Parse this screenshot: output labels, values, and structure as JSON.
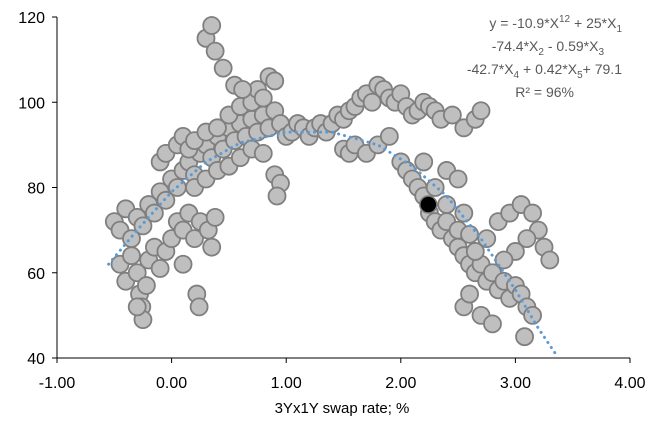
{
  "chart_data": {
    "type": "scatter",
    "title": "",
    "xlabel": "3Yx1Y swap rate; %",
    "ylabel": "",
    "xlim": [
      -1,
      4
    ],
    "ylim": [
      40,
      120
    ],
    "x_ticks": [
      "-1.00",
      "0.00",
      "1.00",
      "2.00",
      "3.00",
      "4.00"
    ],
    "y_ticks": [
      "40",
      "60",
      "80",
      "100",
      "120"
    ],
    "grid": false,
    "legend": "none",
    "marker_fill": "#bfbfbf",
    "marker_edge": "#7f7f7f",
    "trend_color": "#5b9bd5",
    "highlight_color": "#000000",
    "equation": {
      "line1_html": "y = -10.9*X<tspan dy='-5' font-size='10'>1</tspan><tspan dy='10' font-size='10'>2</tspan><tspan dy='-5'> + 25*X</tspan><tspan dy='5' font-size='10'>1</tspan>",
      "line1": "y = -10.9*X1^2 + 25*X1",
      "line2": "-74.4*X2 - 0.59*X3",
      "line3": "-42.7*X4 + 0.42*X5+ 79.1",
      "line4": "R² = 96%"
    },
    "highlight_point": {
      "x": 2.24,
      "y": 76
    },
    "trend_line": {
      "style": "dotted",
      "points": [
        [
          -0.55,
          62
        ],
        [
          -0.3,
          70
        ],
        [
          0.0,
          79
        ],
        [
          0.3,
          86
        ],
        [
          0.6,
          90.5
        ],
        [
          1.0,
          93
        ],
        [
          1.4,
          93
        ],
        [
          1.8,
          90
        ],
        [
          2.1,
          85
        ],
        [
          2.4,
          78
        ],
        [
          2.7,
          68
        ],
        [
          3.0,
          56
        ],
        [
          3.2,
          47
        ],
        [
          3.35,
          41
        ]
      ]
    },
    "series": [
      {
        "points": [
          [
            -0.5,
            72
          ],
          [
            -0.45,
            70
          ],
          [
            -0.4,
            75
          ],
          [
            -0.35,
            68
          ],
          [
            -0.3,
            73
          ],
          [
            -0.25,
            71
          ],
          [
            -0.2,
            76
          ],
          [
            -0.15,
            74
          ],
          [
            -0.1,
            79
          ],
          [
            -0.05,
            77
          ],
          [
            0.0,
            82
          ],
          [
            0.05,
            80
          ],
          [
            0.1,
            84
          ],
          [
            0.15,
            86
          ],
          [
            0.2,
            83
          ],
          [
            0.25,
            88
          ],
          [
            0.3,
            90
          ],
          [
            0.35,
            87
          ],
          [
            0.4,
            92
          ],
          [
            0.45,
            89
          ],
          [
            0.5,
            94
          ],
          [
            0.55,
            91
          ],
          [
            0.6,
            95
          ],
          [
            0.65,
            92
          ],
          [
            0.7,
            96
          ],
          [
            0.75,
            93
          ],
          [
            0.8,
            97
          ],
          [
            0.85,
            94
          ],
          [
            0.9,
            98
          ],
          [
            0.95,
            95
          ],
          [
            -0.45,
            62
          ],
          [
            -0.4,
            58
          ],
          [
            -0.35,
            64
          ],
          [
            -0.3,
            60
          ],
          [
            -0.28,
            55
          ],
          [
            -0.26,
            52
          ],
          [
            -0.25,
            49
          ],
          [
            -0.22,
            57
          ],
          [
            -0.2,
            63
          ],
          [
            -0.15,
            66
          ],
          [
            -0.1,
            61
          ],
          [
            -0.05,
            65
          ],
          [
            0.0,
            68
          ],
          [
            0.05,
            72
          ],
          [
            0.1,
            70
          ],
          [
            0.15,
            74
          ],
          [
            0.2,
            68
          ],
          [
            0.25,
            72
          ],
          [
            0.1,
            62
          ],
          [
            -0.3,
            52
          ],
          [
            -0.1,
            86
          ],
          [
            -0.05,
            88
          ],
          [
            0.05,
            90
          ],
          [
            0.1,
            92
          ],
          [
            0.15,
            89
          ],
          [
            0.2,
            91
          ],
          [
            0.3,
            93
          ],
          [
            0.4,
            94
          ],
          [
            0.5,
            97
          ],
          [
            0.6,
            99
          ],
          [
            0.7,
            100
          ],
          [
            0.75,
            103
          ],
          [
            0.8,
            101
          ],
          [
            0.85,
            106
          ],
          [
            0.9,
            105
          ],
          [
            0.3,
            115
          ],
          [
            0.35,
            118
          ],
          [
            0.38,
            112
          ],
          [
            0.45,
            108
          ],
          [
            0.55,
            104
          ],
          [
            0.62,
            103
          ],
          [
            0.2,
            80
          ],
          [
            0.3,
            82
          ],
          [
            0.4,
            84
          ],
          [
            0.5,
            85
          ],
          [
            0.6,
            87
          ],
          [
            0.7,
            89
          ],
          [
            0.8,
            88
          ],
          [
            0.9,
            83
          ],
          [
            0.95,
            81
          ],
          [
            0.92,
            78
          ],
          [
            0.22,
            55
          ],
          [
            0.24,
            52
          ],
          [
            0.32,
            70
          ],
          [
            0.35,
            66
          ],
          [
            0.38,
            73
          ],
          [
            1.0,
            92
          ],
          [
            1.05,
            93
          ],
          [
            1.1,
            95
          ],
          [
            1.15,
            94
          ],
          [
            1.2,
            92
          ],
          [
            1.25,
            94
          ],
          [
            1.3,
            95
          ],
          [
            1.35,
            93
          ],
          [
            1.4,
            95
          ],
          [
            1.45,
            97
          ],
          [
            1.5,
            96
          ],
          [
            1.55,
            98
          ],
          [
            1.6,
            99
          ],
          [
            1.65,
            101
          ],
          [
            1.7,
            102
          ],
          [
            1.75,
            100
          ],
          [
            1.8,
            104
          ],
          [
            1.85,
            103
          ],
          [
            1.9,
            101
          ],
          [
            1.95,
            100
          ],
          [
            2.0,
            102
          ],
          [
            2.05,
            99
          ],
          [
            2.1,
            97
          ],
          [
            2.15,
            98
          ],
          [
            2.2,
            100
          ],
          [
            2.25,
            99
          ],
          [
            2.3,
            98
          ],
          [
            2.35,
            96
          ],
          [
            2.45,
            97
          ],
          [
            2.55,
            94
          ],
          [
            2.65,
            96
          ],
          [
            2.7,
            98
          ],
          [
            1.5,
            89
          ],
          [
            1.55,
            88
          ],
          [
            1.6,
            90
          ],
          [
            1.7,
            88
          ],
          [
            1.8,
            90
          ],
          [
            1.9,
            92
          ],
          [
            2.0,
            86
          ],
          [
            2.05,
            84
          ],
          [
            2.1,
            82
          ],
          [
            2.15,
            80
          ],
          [
            2.2,
            78
          ],
          [
            2.25,
            74
          ],
          [
            2.3,
            72
          ],
          [
            2.35,
            70
          ],
          [
            2.4,
            72
          ],
          [
            2.45,
            68
          ],
          [
            2.5,
            66
          ],
          [
            2.55,
            64
          ],
          [
            2.6,
            62
          ],
          [
            2.65,
            60
          ],
          [
            2.7,
            62
          ],
          [
            2.75,
            58
          ],
          [
            2.8,
            60
          ],
          [
            2.85,
            56
          ],
          [
            2.9,
            58
          ],
          [
            2.95,
            54
          ],
          [
            3.0,
            57
          ],
          [
            3.05,
            55
          ],
          [
            3.1,
            52
          ],
          [
            3.15,
            50
          ],
          [
            3.08,
            45
          ],
          [
            2.55,
            52
          ],
          [
            2.6,
            55
          ],
          [
            2.7,
            50
          ],
          [
            2.8,
            48
          ],
          [
            2.65,
            65
          ],
          [
            2.75,
            68
          ],
          [
            2.85,
            72
          ],
          [
            2.95,
            74
          ],
          [
            3.05,
            76
          ],
          [
            3.15,
            74
          ],
          [
            3.2,
            70
          ],
          [
            3.25,
            66
          ],
          [
            3.3,
            63
          ],
          [
            3.1,
            68
          ],
          [
            3.0,
            65
          ],
          [
            2.9,
            63
          ],
          [
            2.5,
            70
          ],
          [
            2.55,
            74
          ],
          [
            2.6,
            69
          ],
          [
            2.4,
            76
          ],
          [
            2.3,
            80
          ],
          [
            2.4,
            84
          ],
          [
            2.5,
            82
          ],
          [
            2.2,
            86
          ]
        ]
      }
    ]
  }
}
